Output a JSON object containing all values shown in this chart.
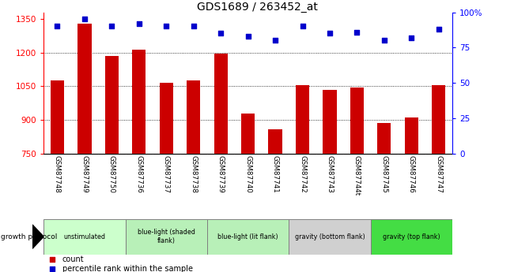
{
  "title": "GDS1689 / 263452_at",
  "categories": [
    "GSM87748",
    "GSM87749",
    "GSM87750",
    "GSM87736",
    "GSM87737",
    "GSM87738",
    "GSM87739",
    "GSM87740",
    "GSM87741",
    "GSM87742",
    "GSM87743",
    "GSM87744t",
    "GSM87745",
    "GSM87746",
    "GSM87747"
  ],
  "bar_values": [
    1075,
    1330,
    1185,
    1215,
    1065,
    1075,
    1195,
    930,
    860,
    1055,
    1035,
    1045,
    885,
    910,
    1055
  ],
  "percentile_values": [
    90,
    95,
    90,
    92,
    90,
    90,
    85,
    83,
    80,
    90,
    85,
    86,
    80,
    82,
    88
  ],
  "bar_color": "#cc0000",
  "dot_color": "#0000cc",
  "ylim_left": [
    750,
    1380
  ],
  "ylim_right": [
    0,
    100
  ],
  "yticks_left": [
    750,
    900,
    1050,
    1200,
    1350
  ],
  "yticks_right": [
    0,
    25,
    50,
    75,
    100
  ],
  "grid_values": [
    900,
    1050,
    1200
  ],
  "bar_bottom": 750,
  "group_labels": [
    "unstimulated",
    "blue-light (shaded\nflank)",
    "blue-light (lit flank)",
    "gravity (bottom flank)",
    "gravity (top flank)"
  ],
  "group_sizes": [
    3,
    3,
    3,
    3,
    3
  ],
  "group_colors": [
    "#ccffcc",
    "#b8f0b8",
    "#b8f0b8",
    "#d0d0d0",
    "#44dd44"
  ],
  "xtick_bg": "#d0d0d0",
  "title_fontsize": 10,
  "bar_width": 0.5
}
